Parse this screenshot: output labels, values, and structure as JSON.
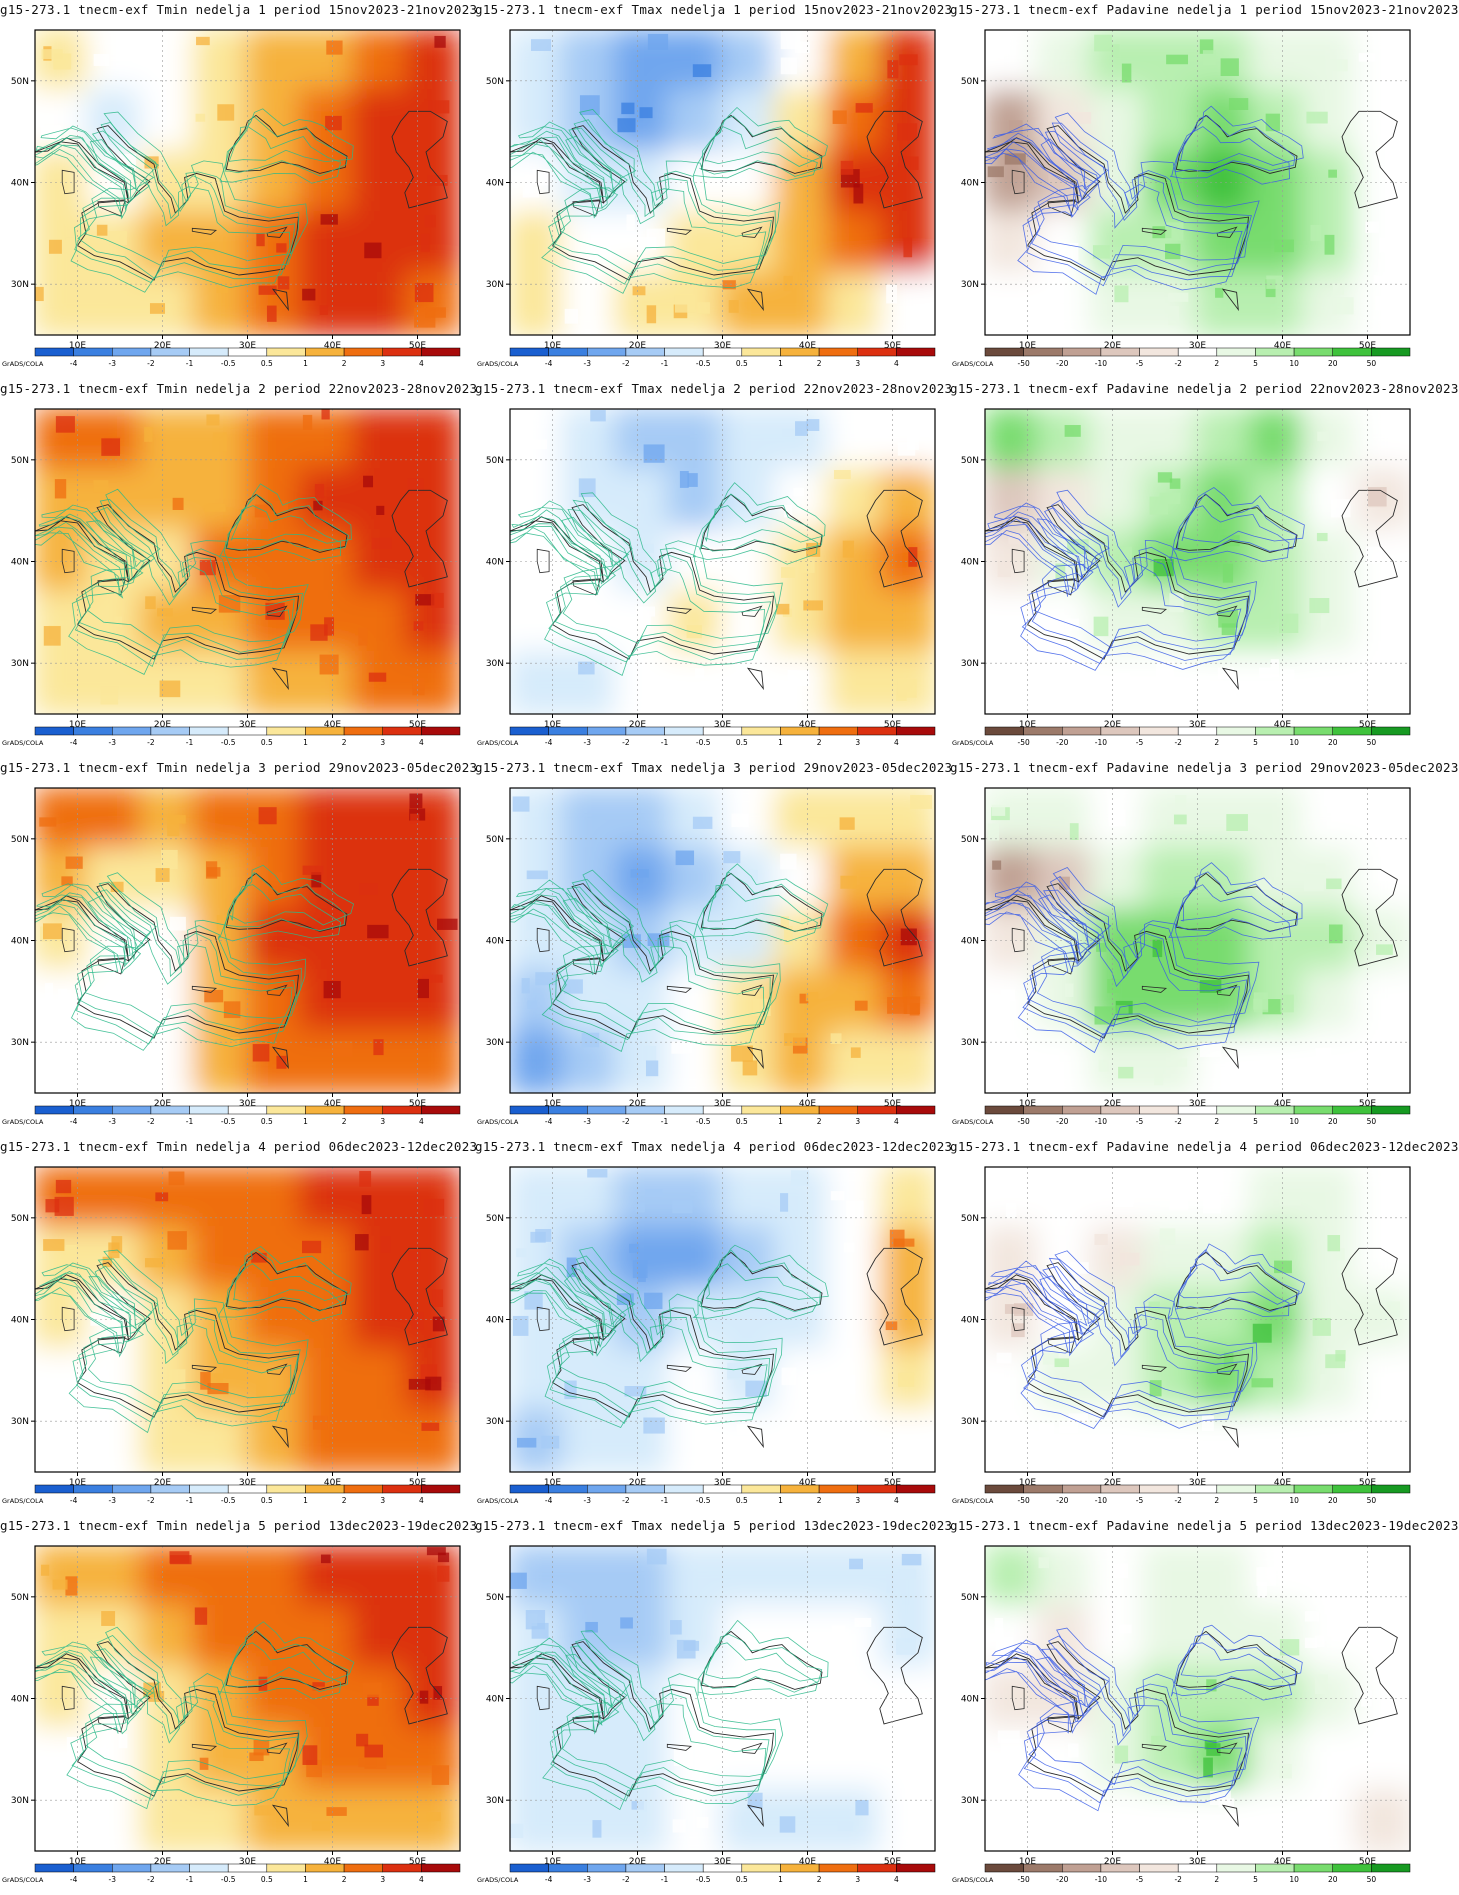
{
  "credit": "GrADS/COLA",
  "axes": {
    "lon_ticks": [
      "10E",
      "20E",
      "30E",
      "40E",
      "50E"
    ],
    "lat_ticks": [
      "50N",
      "40N",
      "30N"
    ],
    "lon_range": [
      5,
      55
    ],
    "lat_range": [
      25,
      55
    ]
  },
  "scales": {
    "temp": {
      "labels": [
        "-4",
        "-3",
        "-2",
        "-1",
        "-0.5",
        "0.5",
        "1",
        "2",
        "3",
        "4"
      ],
      "colors": [
        "#1a5fd0",
        "#3a7fe0",
        "#6fa6ee",
        "#a6cbf5",
        "#d6ebfb",
        "#ffffff",
        "#fbe79a",
        "#f6b23c",
        "#ef6e10",
        "#dc3010",
        "#a80a0a"
      ]
    },
    "precip": {
      "labels": [
        "-50",
        "-20",
        "-10",
        "-5",
        "-2",
        "2",
        "5",
        "10",
        "20",
        "50"
      ],
      "colors": [
        "#6b4a3c",
        "#9c7a6a",
        "#c0a093",
        "#ddc7bd",
        "#f2e6de",
        "#ffffff",
        "#e8f8e4",
        "#b8efb0",
        "#78dc6e",
        "#3fc23c",
        "#179a22"
      ]
    }
  },
  "rows": [
    {
      "week": "1",
      "period": "15nov2023-21nov2023"
    },
    {
      "week": "2",
      "period": "22nov2023-28nov2023"
    },
    {
      "week": "3",
      "period": "29nov2023-05dec2023"
    },
    {
      "week": "4",
      "period": "06dec2023-12dec2023"
    },
    {
      "week": "5",
      "period": "13dec2023-19dec2023"
    }
  ],
  "panels": [
    {
      "title": "g15-273.1 tnecm-exf Tmin nedelja 1 period 15nov2023-21nov2023",
      "variable": "Tmin",
      "scale": "temp",
      "anomaly": [
        [
          1,
          0,
          0,
          1,
          2,
          2,
          3,
          4
        ],
        [
          0,
          -1,
          0,
          1,
          2,
          3,
          4,
          4
        ],
        [
          1,
          0,
          1,
          1,
          2,
          3,
          4,
          4
        ],
        [
          1,
          1,
          2,
          2,
          3,
          4,
          4,
          4
        ],
        [
          1,
          1,
          1,
          2,
          3,
          4,
          4,
          3
        ]
      ]
    },
    {
      "title": "g15-273.1 tnecm-exf Tmax nedelja 1 period 15nov2023-21nov2023",
      "variable": "Tmax",
      "scale": "temp",
      "anomaly": [
        [
          -1,
          -2,
          -3,
          -3,
          -2,
          0,
          2,
          4
        ],
        [
          -1,
          -2,
          -3,
          -2,
          -1,
          1,
          3,
          4
        ],
        [
          0,
          -1,
          -1,
          0,
          0,
          2,
          4,
          4
        ],
        [
          1,
          0,
          0,
          1,
          1,
          2,
          3,
          4
        ],
        [
          1,
          0,
          1,
          1,
          2,
          2,
          1,
          0
        ]
      ]
    },
    {
      "title": "g15-273.1 tnecm-exf Padavine nedelja 1 period 15nov2023-21nov2023",
      "variable": "Padavine",
      "scale": "precip",
      "anomaly": [
        [
          0,
          1,
          2,
          2,
          2,
          1,
          1,
          0
        ],
        [
          -3,
          -1,
          1,
          2,
          3,
          2,
          1,
          0
        ],
        [
          -3,
          -2,
          1,
          3,
          4,
          3,
          2,
          0
        ],
        [
          -1,
          0,
          2,
          2,
          3,
          3,
          2,
          0
        ],
        [
          0,
          0,
          1,
          1,
          2,
          2,
          1,
          0
        ]
      ]
    },
    {
      "title": "g15-273.1 tnecm-exf Tmin nedelja 2 period 22nov2023-28nov2023",
      "variable": "Tmin",
      "scale": "temp",
      "anomaly": [
        [
          3,
          3,
          2,
          2,
          3,
          3,
          4,
          4
        ],
        [
          2,
          2,
          2,
          2,
          3,
          4,
          4,
          4
        ],
        [
          2,
          1,
          1,
          3,
          3,
          3,
          4,
          4
        ],
        [
          1,
          1,
          2,
          2,
          3,
          3,
          3,
          4
        ],
        [
          1,
          1,
          1,
          1,
          2,
          2,
          3,
          3
        ]
      ]
    },
    {
      "title": "g15-273.1 tnecm-exf Tmax nedelja 2 period 22nov2023-28nov2023",
      "variable": "Tmax",
      "scale": "temp",
      "anomaly": [
        [
          0,
          -1,
          -2,
          -2,
          -1,
          -1,
          0,
          0
        ],
        [
          0,
          -1,
          -1,
          -2,
          -1,
          0,
          1,
          2
        ],
        [
          0,
          0,
          -1,
          0,
          0,
          1,
          2,
          3
        ],
        [
          0,
          0,
          0,
          1,
          0,
          1,
          2,
          2
        ],
        [
          -1,
          -1,
          0,
          0,
          0,
          0,
          1,
          1
        ]
      ]
    },
    {
      "title": "g15-273.1 tnecm-exf Padavine nedelja 2 period 22nov2023-28nov2023",
      "variable": "Padavine",
      "scale": "precip",
      "anomaly": [
        [
          3,
          2,
          1,
          1,
          2,
          3,
          1,
          0
        ],
        [
          -2,
          -1,
          1,
          2,
          3,
          2,
          0,
          -1
        ],
        [
          -1,
          1,
          2,
          3,
          3,
          2,
          1,
          0
        ],
        [
          0,
          0,
          1,
          1,
          2,
          2,
          1,
          0
        ],
        [
          0,
          0,
          0,
          0,
          0,
          0,
          0,
          0
        ]
      ]
    },
    {
      "title": "g15-273.1 tnecm-exf Tmin nedelja 3 period 29nov2023-05dec2023",
      "variable": "Tmin",
      "scale": "temp",
      "anomaly": [
        [
          3,
          3,
          2,
          3,
          3,
          4,
          4,
          4
        ],
        [
          2,
          1,
          1,
          2,
          3,
          4,
          4,
          4
        ],
        [
          1,
          0,
          0,
          2,
          4,
          4,
          4,
          4
        ],
        [
          0,
          0,
          0,
          2,
          3,
          4,
          4,
          4
        ],
        [
          0,
          0,
          0,
          2,
          3,
          3,
          3,
          3
        ]
      ]
    },
    {
      "title": "g15-273.1 tnecm-exf Tmax nedelja 3 period 29nov2023-05dec2023",
      "variable": "Tmax",
      "scale": "temp",
      "anomaly": [
        [
          -1,
          -2,
          -2,
          -1,
          0,
          1,
          1,
          1
        ],
        [
          -1,
          -2,
          -3,
          -2,
          -1,
          0,
          2,
          2
        ],
        [
          -1,
          -1,
          -2,
          -1,
          -1,
          1,
          3,
          4
        ],
        [
          -2,
          -1,
          -1,
          0,
          1,
          2,
          2,
          3
        ],
        [
          -3,
          -2,
          -1,
          0,
          1,
          2,
          1,
          1
        ]
      ]
    },
    {
      "title": "g15-273.1 tnecm-exf Padavine nedelja 3 period 29nov2023-05dec2023",
      "variable": "Padavine",
      "scale": "precip",
      "anomaly": [
        [
          1,
          1,
          0,
          1,
          1,
          1,
          0,
          0
        ],
        [
          -3,
          -2,
          1,
          2,
          2,
          1,
          1,
          0
        ],
        [
          -1,
          1,
          3,
          3,
          3,
          2,
          2,
          1
        ],
        [
          0,
          1,
          3,
          3,
          3,
          2,
          1,
          0
        ],
        [
          0,
          0,
          1,
          1,
          0,
          0,
          0,
          0
        ]
      ]
    },
    {
      "title": "g15-273.1 tnecm-exf Tmin nedelja 4 period 06dec2023-12dec2023",
      "variable": "Tmin",
      "scale": "temp",
      "anomaly": [
        [
          3,
          3,
          3,
          3,
          3,
          4,
          4,
          4
        ],
        [
          1,
          1,
          2,
          3,
          3,
          3,
          4,
          4
        ],
        [
          1,
          0,
          1,
          2,
          3,
          3,
          4,
          4
        ],
        [
          0,
          0,
          1,
          2,
          2,
          3,
          3,
          4
        ],
        [
          0,
          0,
          1,
          1,
          2,
          3,
          3,
          3
        ]
      ]
    },
    {
      "title": "g15-273.1 tnecm-exf Tmax nedelja 4 period 06dec2023-12dec2023",
      "variable": "Tmax",
      "scale": "temp",
      "anomaly": [
        [
          -1,
          -1,
          -2,
          -2,
          -1,
          -1,
          0,
          1
        ],
        [
          -1,
          -2,
          -3,
          -3,
          -2,
          -1,
          0,
          2
        ],
        [
          -1,
          -1,
          -2,
          -1,
          -1,
          -1,
          0,
          2
        ],
        [
          -1,
          -1,
          -1,
          0,
          -1,
          0,
          0,
          1
        ],
        [
          -2,
          -1,
          -1,
          0,
          0,
          0,
          0,
          0
        ]
      ]
    },
    {
      "title": "g15-273.1 tnecm-exf Padavine nedelja 4 period 06dec2023-12dec2023",
      "variable": "Padavine",
      "scale": "precip",
      "anomaly": [
        [
          0,
          0,
          0,
          0,
          0,
          1,
          1,
          0
        ],
        [
          -1,
          0,
          -1,
          1,
          1,
          2,
          1,
          0
        ],
        [
          -1,
          0,
          1,
          2,
          2,
          3,
          1,
          1
        ],
        [
          0,
          1,
          1,
          2,
          3,
          2,
          1,
          0
        ],
        [
          0,
          0,
          0,
          0,
          0,
          0,
          0,
          0
        ]
      ]
    },
    {
      "title": "g15-273.1 tnecm-exf Tmin nedelja 5 period 13dec2023-19dec2023",
      "variable": "Tmin",
      "scale": "temp",
      "anomaly": [
        [
          2,
          2,
          3,
          3,
          3,
          4,
          4,
          4
        ],
        [
          1,
          1,
          2,
          3,
          3,
          3,
          4,
          4
        ],
        [
          1,
          0,
          1,
          2,
          3,
          3,
          3,
          4
        ],
        [
          0,
          0,
          1,
          2,
          2,
          3,
          3,
          3
        ],
        [
          0,
          0,
          1,
          1,
          2,
          2,
          2,
          2
        ]
      ]
    },
    {
      "title": "g15-273.1 tnecm-exf Tmax nedelja 5 period 13dec2023-19dec2023",
      "variable": "Tmax",
      "scale": "temp",
      "anomaly": [
        [
          -2,
          -2,
          -2,
          -1,
          -1,
          -1,
          -1,
          -1
        ],
        [
          -1,
          -2,
          -2,
          -1,
          0,
          0,
          0,
          -1
        ],
        [
          -1,
          -1,
          -1,
          0,
          0,
          0,
          0,
          0
        ],
        [
          -1,
          -1,
          -1,
          0,
          0,
          0,
          0,
          0
        ],
        [
          -1,
          -1,
          -1,
          0,
          -1,
          -1,
          -1,
          0
        ]
      ]
    },
    {
      "title": "g15-273.1 tnecm-exf Padavine nedelja 5 period 13dec2023-19dec2023",
      "variable": "Padavine",
      "scale": "precip",
      "anomaly": [
        [
          2,
          1,
          0,
          1,
          1,
          0,
          0,
          0
        ],
        [
          0,
          -1,
          0,
          1,
          1,
          1,
          0,
          0
        ],
        [
          -1,
          -1,
          1,
          2,
          2,
          2,
          1,
          0
        ],
        [
          0,
          0,
          1,
          2,
          3,
          1,
          0,
          0
        ],
        [
          0,
          0,
          0,
          0,
          0,
          0,
          0,
          -1
        ]
      ]
    }
  ]
}
